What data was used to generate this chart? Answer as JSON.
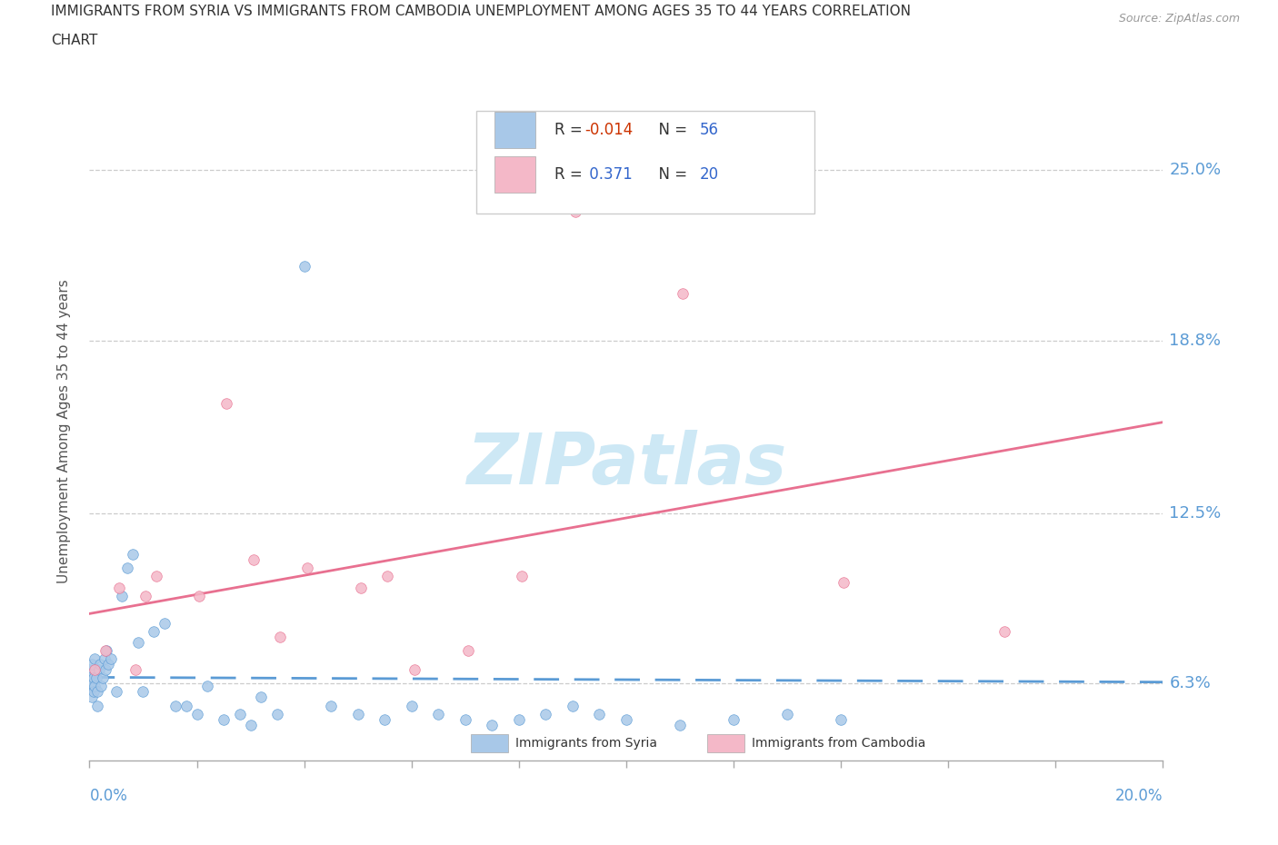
{
  "title_line1": "IMMIGRANTS FROM SYRIA VS IMMIGRANTS FROM CAMBODIA UNEMPLOYMENT AMONG AGES 35 TO 44 YEARS CORRELATION",
  "title_line2": "CHART",
  "source": "Source: ZipAtlas.com",
  "ylabel": "Unemployment Among Ages 35 to 44 years",
  "xlim": [
    0.0,
    20.0
  ],
  "ylim": [
    3.5,
    27.5
  ],
  "ytick_vals": [
    6.3,
    12.5,
    18.8,
    25.0
  ],
  "syria_color": "#a8c8e8",
  "syria_color_line": "#5b9bd5",
  "cambodia_color": "#f4b8c8",
  "cambodia_color_line": "#e87090",
  "syria_R": -0.014,
  "syria_N": 56,
  "cambodia_R": 0.371,
  "cambodia_N": 20,
  "syria_x": [
    0.0,
    0.0,
    0.0,
    0.05,
    0.05,
    0.05,
    0.08,
    0.08,
    0.1,
    0.1,
    0.12,
    0.15,
    0.15,
    0.18,
    0.2,
    0.22,
    0.25,
    0.28,
    0.3,
    0.32,
    0.35,
    0.4,
    0.5,
    0.6,
    0.7,
    0.8,
    0.9,
    1.0,
    1.2,
    1.4,
    1.6,
    1.8,
    2.0,
    2.2,
    2.5,
    2.8,
    3.0,
    3.2,
    3.5,
    4.0,
    4.5,
    5.0,
    5.5,
    6.0,
    6.5,
    7.0,
    7.5,
    8.0,
    8.5,
    9.0,
    9.5,
    10.0,
    11.0,
    12.0,
    13.0,
    14.0
  ],
  "syria_y": [
    6.2,
    6.8,
    6.5,
    5.8,
    6.3,
    7.0,
    6.0,
    6.5,
    6.2,
    7.2,
    6.5,
    6.0,
    5.5,
    6.8,
    7.0,
    6.2,
    6.5,
    7.2,
    6.8,
    7.5,
    7.0,
    7.2,
    6.0,
    9.5,
    10.5,
    11.0,
    7.8,
    6.0,
    8.2,
    8.5,
    5.5,
    5.5,
    5.2,
    6.2,
    5.0,
    5.2,
    4.8,
    5.8,
    5.2,
    21.5,
    5.5,
    5.2,
    5.0,
    5.5,
    5.2,
    5.0,
    4.8,
    5.0,
    5.2,
    5.5,
    5.2,
    5.0,
    4.8,
    5.0,
    5.2,
    5.0
  ],
  "cambodia_x": [
    0.1,
    0.3,
    0.55,
    0.85,
    1.05,
    1.25,
    2.05,
    2.55,
    3.05,
    3.55,
    4.05,
    5.05,
    5.55,
    6.05,
    7.05,
    8.05,
    9.05,
    11.05,
    14.05,
    17.05
  ],
  "cambodia_y": [
    6.8,
    7.5,
    9.8,
    6.8,
    9.5,
    10.2,
    9.5,
    16.5,
    10.8,
    8.0,
    10.5,
    9.8,
    10.2,
    6.8,
    7.5,
    10.2,
    23.5,
    20.5,
    10.0,
    8.2
  ],
  "legend_text_color": "#333333",
  "r_value_color": "#d44000",
  "n_value_color": "#3366cc"
}
